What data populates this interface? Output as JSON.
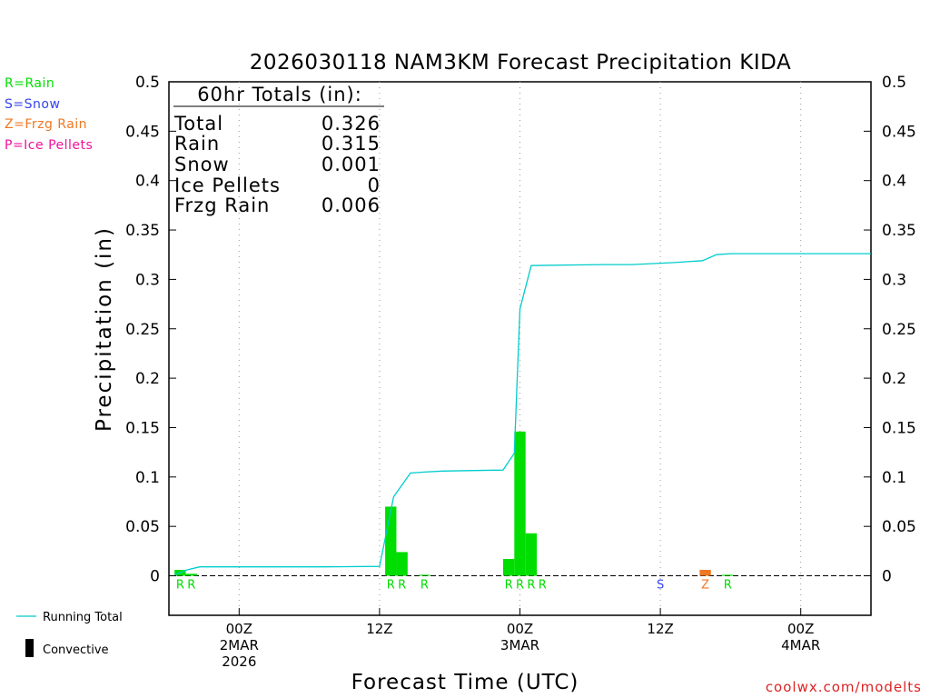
{
  "chart_data": {
    "type": "bar",
    "title": "2026030118 NAM3KM Forecast Precipitation KIDA",
    "ylabel": "Precipitation (in)",
    "xlabel": "Forecast Time (UTC)",
    "ylim": [
      -0.04,
      0.5
    ],
    "yticks": [
      0,
      0.05,
      0.1,
      0.15,
      0.2,
      0.25,
      0.3,
      0.35,
      0.4,
      0.45,
      0.5
    ],
    "ytick_labels": [
      "0",
      "0.05",
      "0.1",
      "0.15",
      "0.2",
      "0.25",
      "0.3",
      "0.35",
      "0.4",
      "0.45",
      "0.5"
    ],
    "xlim_hours": [
      19,
      69
    ],
    "x_ticks": [
      {
        "hour": 24,
        "lines": [
          "00Z",
          "2MAR",
          "2026"
        ]
      },
      {
        "hour": 34,
        "lines": [
          "12Z"
        ]
      },
      {
        "hour": 44,
        "lines": [
          "00Z",
          "3MAR"
        ]
      },
      {
        "hour": 54,
        "lines": [
          "12Z"
        ]
      },
      {
        "hour": 64,
        "lines": [
          "00Z",
          "4MAR"
        ]
      }
    ],
    "bars": [
      {
        "hour": 19.8,
        "value": 0.006,
        "color": "#00dd00",
        "ptype": "R"
      },
      {
        "hour": 20.6,
        "value": 0.002,
        "color": "#00dd00",
        "ptype": "R"
      },
      {
        "hour": 34.8,
        "value": 0.07,
        "color": "#00dd00",
        "ptype": "R"
      },
      {
        "hour": 35.6,
        "value": 0.024,
        "color": "#00dd00",
        "ptype": "R"
      },
      {
        "hour": 37.2,
        "value": 0.001,
        "color": "#00dd00",
        "ptype": "R"
      },
      {
        "hour": 43.2,
        "value": 0.017,
        "color": "#00dd00",
        "ptype": "R"
      },
      {
        "hour": 44.0,
        "value": 0.146,
        "color": "#00dd00",
        "ptype": "R"
      },
      {
        "hour": 44.8,
        "value": 0.043,
        "color": "#00dd00",
        "ptype": "R"
      },
      {
        "hour": 45.6,
        "value": 0.0,
        "color": "#00dd00",
        "ptype": "R"
      },
      {
        "hour": 54.0,
        "value": 0.0,
        "color": "#3344ee",
        "ptype": "S"
      },
      {
        "hour": 57.2,
        "value": 0.006,
        "color": "#ee7722",
        "ptype": "Z"
      },
      {
        "hour": 58.8,
        "value": 0.001,
        "color": "#00dd00",
        "ptype": "R"
      }
    ],
    "series": [
      {
        "name": "Running Total",
        "color": "#00cccc",
        "x": [
          19.4,
          20.3,
          21.2,
          23,
          30,
          34,
          35.0,
          36.2,
          37.2,
          38.5,
          42.8,
          43.6,
          44.0,
          44.8,
          50,
          52,
          55,
          57,
          58,
          59,
          62,
          66,
          69
        ],
        "y": [
          0.001,
          0.006,
          0.009,
          0.009,
          0.009,
          0.0095,
          0.08,
          0.104,
          0.105,
          0.106,
          0.107,
          0.124,
          0.27,
          0.314,
          0.315,
          0.315,
          0.317,
          0.319,
          0.325,
          0.326,
          0.326,
          0.326,
          0.326
        ]
      }
    ]
  },
  "type_legend": [
    {
      "label": "R=Rain",
      "color": "#00dd00"
    },
    {
      "label": "S=Snow",
      "color": "#3344ee"
    },
    {
      "label": "Z=Frzg Rain",
      "color": "#ee7722"
    },
    {
      "label": "P=Ice Pellets",
      "color": "#ee1199"
    }
  ],
  "totals_box": {
    "heading": "60hr Totals (in):",
    "rows": [
      {
        "label": "Total",
        "value": "0.326"
      },
      {
        "label": "Rain",
        "value": "0.315"
      },
      {
        "label": "Snow",
        "value": "0.001"
      },
      {
        "label": "Ice Pellets",
        "value": "0"
      },
      {
        "label": "Frzg Rain",
        "value": "0.006"
      }
    ]
  },
  "bottom_legend": {
    "running_total_label": "Running Total",
    "convective_label": "Convective",
    "running_total_color": "#00cccc"
  },
  "credit": "coolwx.com/modelts",
  "credit_color": "#dd2222"
}
